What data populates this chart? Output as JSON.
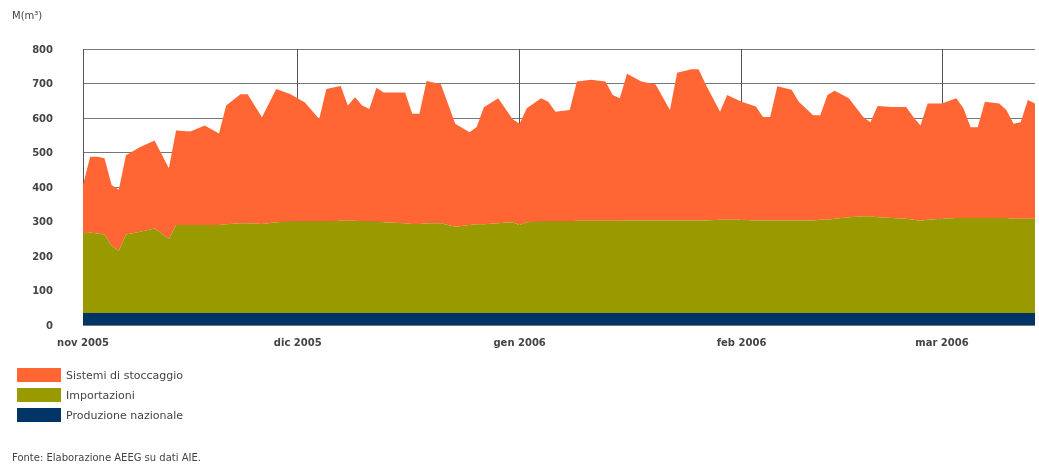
{
  "chart_data": {
    "type": "area",
    "stacked": true,
    "ylabel": "M(m³)",
    "annotations": [
      "Fonte: Elaborazione AEEG su dati AIE."
    ],
    "x": [
      "2005-11-01",
      "2005-11-02",
      "2005-11-03",
      "2005-11-04",
      "2005-11-05",
      "2005-11-06",
      "2005-11-07",
      "2005-11-09",
      "2005-11-11",
      "2005-11-13",
      "2005-11-14",
      "2005-11-16",
      "2005-11-18",
      "2005-11-20",
      "2005-11-21",
      "2005-11-23",
      "2005-11-24",
      "2005-11-26",
      "2005-11-28",
      "2005-11-30",
      "2005-12-02",
      "2005-12-04",
      "2005-12-05",
      "2005-12-07",
      "2005-12-08",
      "2005-12-09",
      "2005-12-10",
      "2005-12-11",
      "2005-12-12",
      "2005-12-13",
      "2005-12-16",
      "2005-12-17",
      "2005-12-18",
      "2005-12-19",
      "2005-12-21",
      "2005-12-23",
      "2005-12-25",
      "2005-12-26",
      "2005-12-27",
      "2005-12-29",
      "2005-12-31",
      "2006-01-01",
      "2006-01-02",
      "2006-01-04",
      "2006-01-05",
      "2006-01-06",
      "2006-01-08",
      "2006-01-09",
      "2006-01-11",
      "2006-01-13",
      "2006-01-14",
      "2006-01-15",
      "2006-01-16",
      "2006-01-18",
      "2006-01-20",
      "2006-01-22",
      "2006-01-23",
      "2006-01-25",
      "2006-01-26",
      "2006-01-27",
      "2006-01-29",
      "2006-01-30",
      "2006-02-01",
      "2006-02-03",
      "2006-02-04",
      "2006-02-05",
      "2006-02-06",
      "2006-02-08",
      "2006-02-09",
      "2006-02-11",
      "2006-02-12",
      "2006-02-13",
      "2006-02-14",
      "2006-02-16",
      "2006-02-18",
      "2006-02-19",
      "2006-02-20",
      "2006-02-22",
      "2006-02-24",
      "2006-02-25",
      "2006-02-26",
      "2006-02-27",
      "2006-03-01",
      "2006-03-03",
      "2006-03-04",
      "2006-03-05",
      "2006-03-06",
      "2006-03-07",
      "2006-03-09",
      "2006-03-10",
      "2006-03-11",
      "2006-03-12",
      "2006-03-13",
      "2006-03-14"
    ],
    "series": [
      {
        "name": "Produzione nazionale",
        "color": "#003366",
        "values": [
          35,
          35,
          35,
          35,
          35,
          35,
          35,
          35,
          35,
          35,
          35,
          35,
          35,
          35,
          35,
          35,
          35,
          35,
          35,
          35,
          35,
          35,
          35,
          35,
          35,
          35,
          35,
          35,
          35,
          35,
          35,
          35,
          35,
          35,
          35,
          35,
          35,
          35,
          35,
          35,
          35,
          35,
          35,
          35,
          35,
          35,
          35,
          35,
          35,
          35,
          35,
          35,
          35,
          35,
          35,
          35,
          35,
          35,
          35,
          35,
          35,
          35,
          35,
          35,
          35,
          35,
          35,
          35,
          35,
          35,
          35,
          35,
          35,
          35,
          35,
          35,
          35,
          35,
          35,
          35,
          35,
          35,
          35,
          35,
          35,
          35,
          35,
          35,
          35,
          35,
          35,
          35,
          35,
          35
        ]
      },
      {
        "name": "Importazioni",
        "color": "#999900",
        "values": [
          230,
          233,
          230,
          227,
          195,
          180,
          227,
          235,
          245,
          215,
          255,
          255,
          255,
          255,
          257,
          260,
          260,
          258,
          263,
          265,
          265,
          265,
          265,
          267,
          267,
          267,
          265,
          265,
          265,
          263,
          260,
          258,
          258,
          260,
          260,
          250,
          255,
          257,
          257,
          260,
          263,
          255,
          263,
          265,
          265,
          265,
          265,
          267,
          267,
          267,
          267,
          267,
          268,
          268,
          268,
          268,
          268,
          268,
          268,
          268,
          270,
          270,
          270,
          268,
          268,
          268,
          268,
          268,
          268,
          268,
          270,
          270,
          273,
          277,
          280,
          280,
          277,
          275,
          273,
          270,
          267,
          270,
          273,
          275,
          275,
          275,
          275,
          275,
          275,
          275,
          273,
          273,
          273,
          273
        ]
      },
      {
        "name": "Sistemi di stoccaggio",
        "color": "#ff6633",
        "values": [
          141,
          220,
          223,
          221,
          176,
          177,
          230,
          246,
          255,
          204,
          274,
          271,
          288,
          265,
          344,
          374,
          374,
          309,
          386,
          369,
          345,
          297,
          384,
          391,
          334,
          358,
          336,
          326,
          388,
          376,
          379,
          319,
          319,
          412,
          403,
          298,
          269,
          282,
          339,
          362,
          299,
          293,
          330,
          357,
          347,
          318,
          323,
          404,
          409,
          404,
          365,
          355,
          425,
          403,
          394,
          320,
          428,
          438,
          438,
          394,
          313,
          362,
          342,
          330,
          300,
          300,
          389,
          379,
          344,
          305,
          303,
          362,
          371,
          345,
          288,
          273,
          323,
          322,
          324,
          298,
          276,
          337,
          334,
          347,
          318,
          263,
          263,
          337,
          332,
          313,
          275,
          280,
          344,
          334
        ]
      }
    ],
    "xlim": [
      "2005-11-01",
      "2006-03-14"
    ],
    "xticks": [
      {
        "value": "2005-11-01",
        "label": "nov 2005"
      },
      {
        "value": "2005-12-01",
        "label": "dic 2005"
      },
      {
        "value": "2006-01-01",
        "label": "gen 2006"
      },
      {
        "value": "2006-02-01",
        "label": "feb 2006"
      },
      {
        "value": "2006-03-01",
        "label": "mar 2006"
      }
    ],
    "ylim": [
      0,
      800
    ],
    "yticks": [
      0,
      100,
      200,
      300,
      400,
      500,
      600,
      700,
      800
    ],
    "grid": true,
    "legend": "bottom left"
  }
}
